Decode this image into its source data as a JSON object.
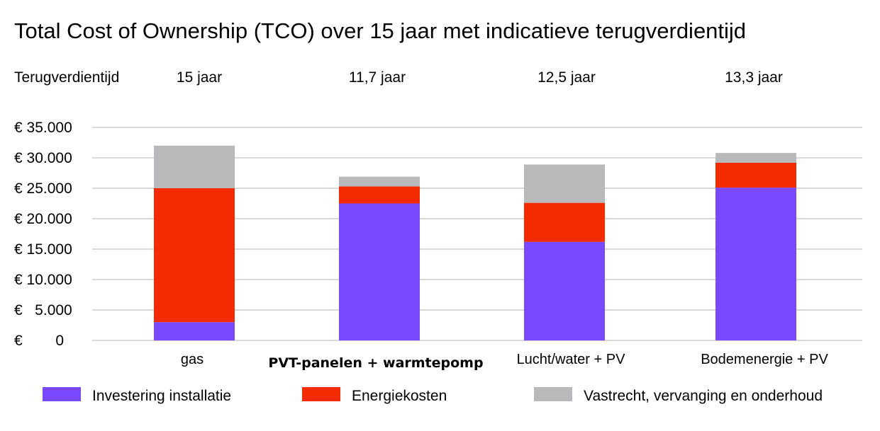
{
  "chart_data": {
    "type": "bar",
    "stacked": true,
    "title": "Total Cost of Ownership (TCO) over 15 jaar met indicatieve terugverdientijd",
    "payback_label": "Terugverdientijd",
    "payback_values": [
      "15 jaar",
      "11,7 jaar",
      "12,5 jaar",
      "13,3 jaar"
    ],
    "categories": [
      "gas",
      "PVT-panelen + warmtepomp",
      "Lucht/water + PV",
      "Bodemenergie + PV"
    ],
    "bold_categories": [
      false,
      true,
      false,
      false
    ],
    "series": [
      {
        "name": "Investering installatie",
        "color": "#7849fe",
        "values": [
          3000,
          22500,
          16200,
          25100
        ]
      },
      {
        "name": "Energiekosten",
        "color": "#f42a00",
        "values": [
          22000,
          2800,
          6400,
          4100
        ]
      },
      {
        "name": "Vastrecht, vervanging en onderhoud",
        "color": "#b9b8ba",
        "values": [
          7000,
          1600,
          6300,
          1600
        ]
      }
    ],
    "y_ticks": [
      0,
      5000,
      10000,
      15000,
      20000,
      25000,
      30000,
      35000
    ],
    "y_tick_labels": [
      "€        0",
      "€   5.000",
      "€ 10.000",
      "€ 15.000",
      "€ 20.000",
      "€ 25.000",
      "€ 30.000",
      "€ 35.000"
    ],
    "ylim": [
      0,
      35000
    ],
    "grid": true,
    "legend_position": "bottom"
  }
}
